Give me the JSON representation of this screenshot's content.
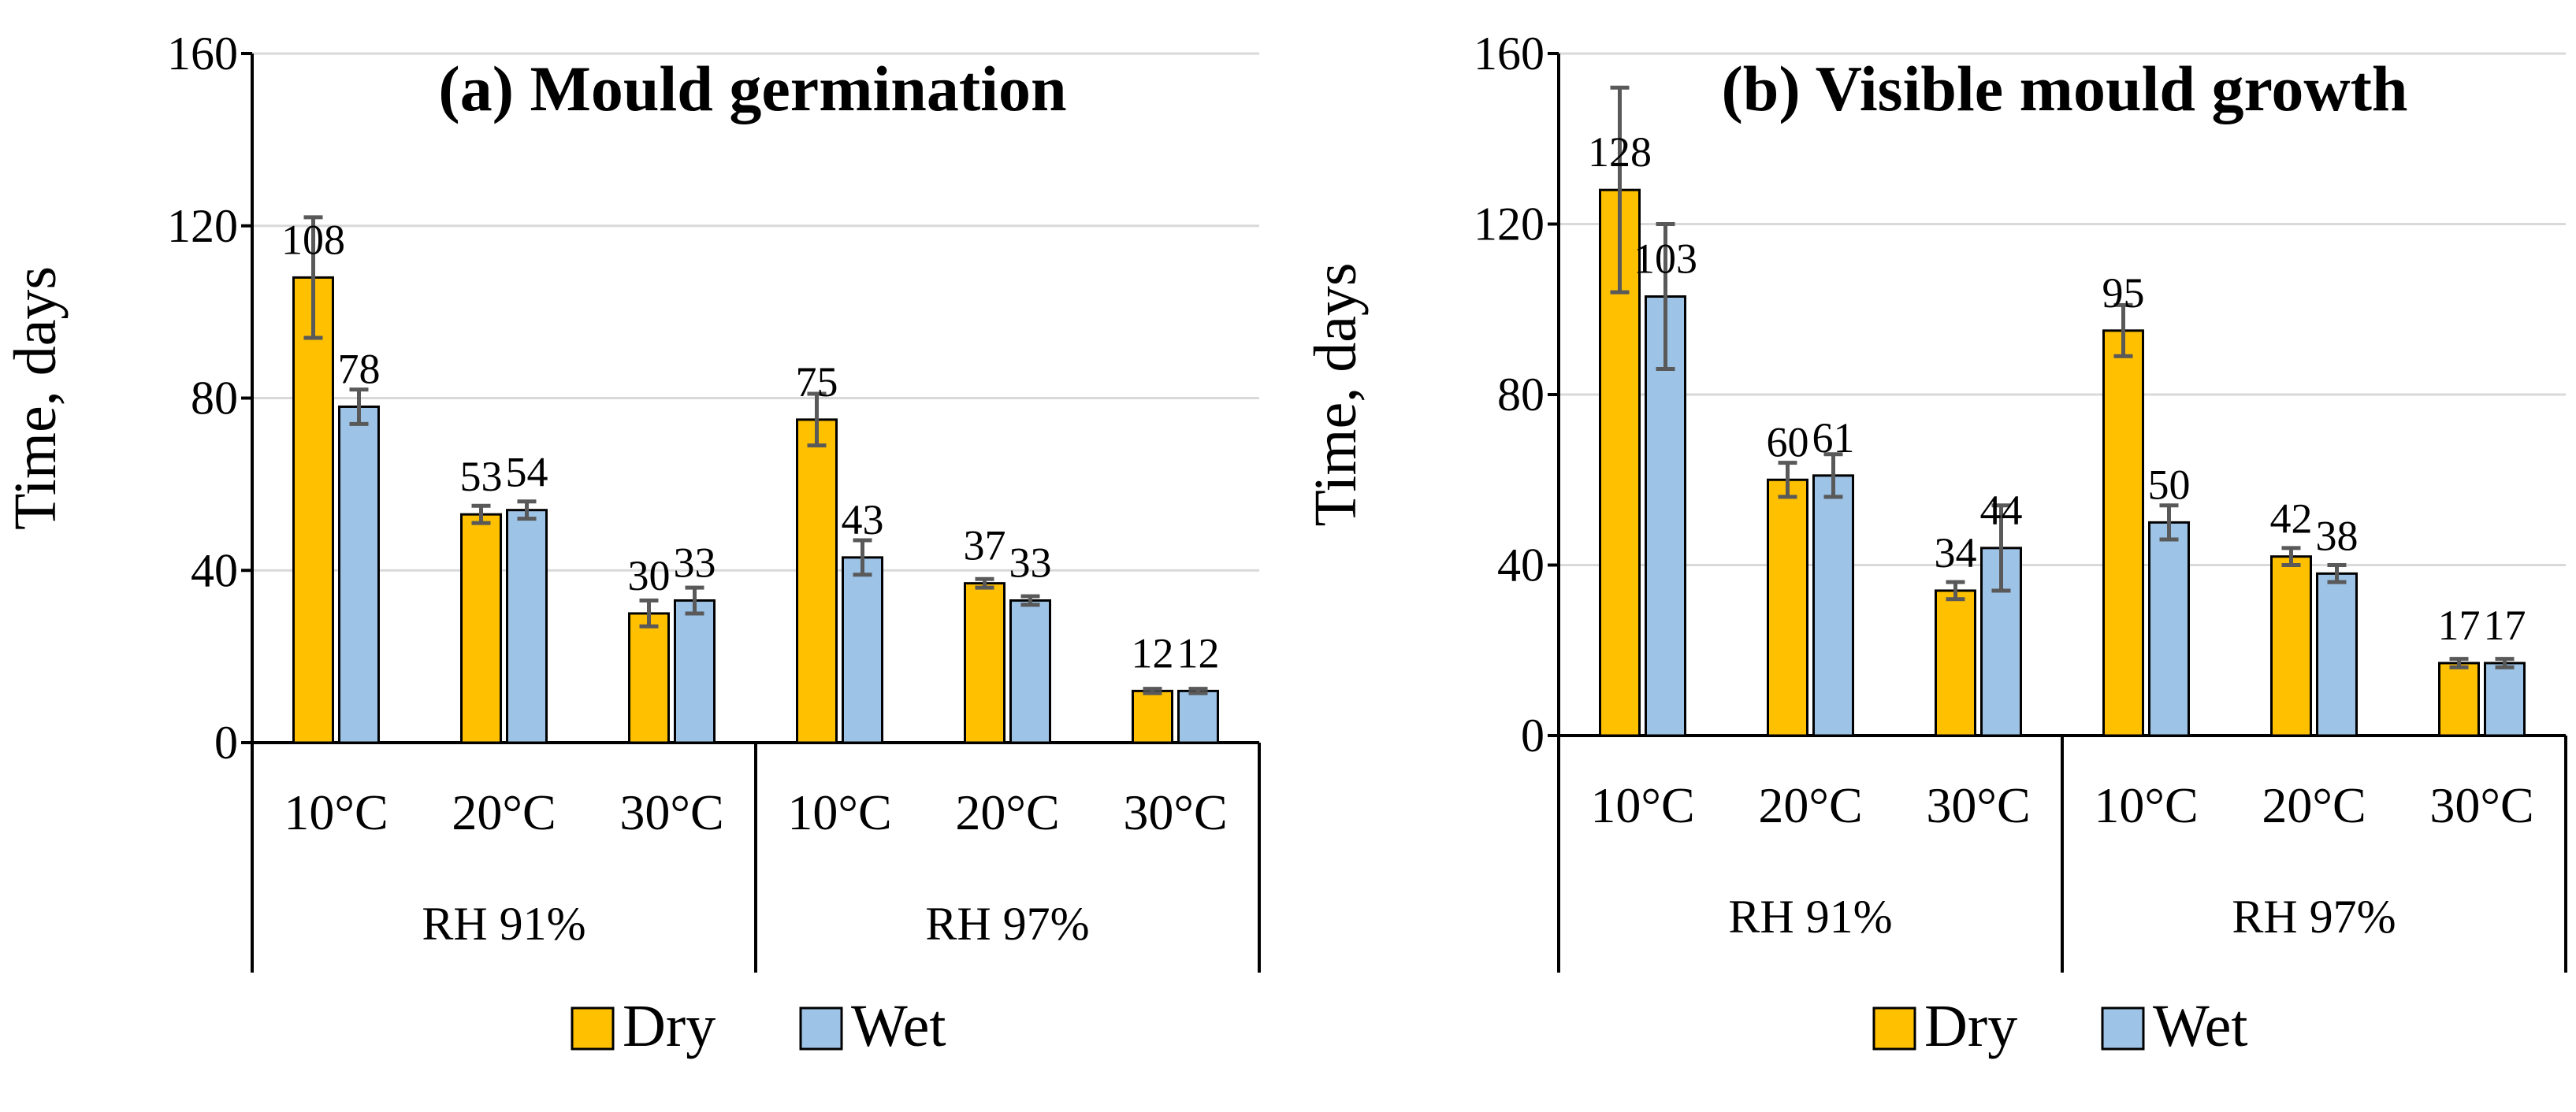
{
  "chart_data": [
    {
      "type": "bar",
      "title": "(a) Mould germination",
      "ylabel": "Time, days",
      "xlabel": "",
      "ylim": [
        0,
        160
      ],
      "yticks": [
        0,
        40,
        80,
        120,
        160
      ],
      "grid": true,
      "legend_position": "bottom",
      "groups": [
        {
          "label": "RH 91%",
          "categories": [
            "10°C",
            "20°C",
            "30°C"
          ]
        },
        {
          "label": "RH 97%",
          "categories": [
            "10°C",
            "20°C",
            "30°C"
          ]
        }
      ],
      "series": [
        {
          "name": "Dry",
          "color": "#FFC000",
          "values": [
            108,
            53,
            30,
            75,
            37,
            12
          ],
          "errors": [
            14,
            2,
            3,
            6,
            1,
            0.5
          ]
        },
        {
          "name": "Wet",
          "color": "#9DC3E6",
          "values": [
            78,
            54,
            33,
            43,
            33,
            12
          ],
          "errors": [
            4,
            2,
            3,
            4,
            1,
            0.5
          ]
        }
      ]
    },
    {
      "type": "bar",
      "title": "(b) Visible mould growth",
      "ylabel": "Time, days",
      "xlabel": "",
      "ylim": [
        0,
        160
      ],
      "yticks": [
        0,
        40,
        80,
        120,
        160
      ],
      "grid": true,
      "legend_position": "bottom",
      "groups": [
        {
          "label": "RH 91%",
          "categories": [
            "10°C",
            "20°C",
            "30°C"
          ]
        },
        {
          "label": "RH 97%",
          "categories": [
            "10°C",
            "20°C",
            "30°C"
          ]
        }
      ],
      "series": [
        {
          "name": "Dry",
          "color": "#FFC000",
          "values": [
            128,
            60,
            34,
            95,
            42,
            17
          ],
          "errors": [
            24,
            4,
            2,
            6,
            2,
            1
          ]
        },
        {
          "name": "Wet",
          "color": "#9DC3E6",
          "values": [
            103,
            61,
            44,
            50,
            38,
            17
          ],
          "errors": [
            17,
            5,
            10,
            4,
            2,
            1
          ]
        }
      ]
    }
  ]
}
